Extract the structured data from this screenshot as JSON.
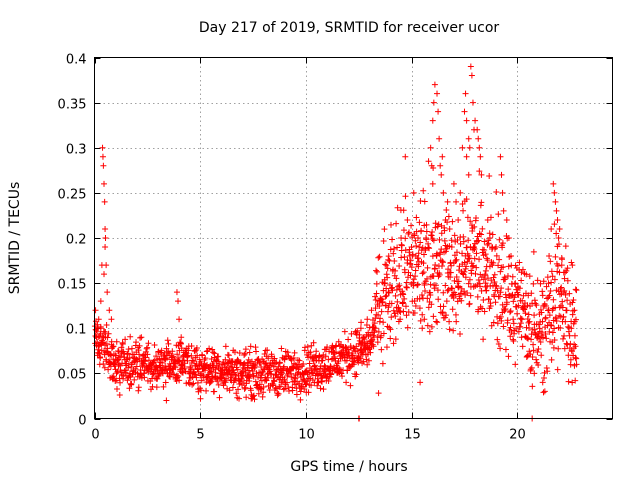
{
  "chart_data": {
    "type": "scatter",
    "title": "Day 217 of 2019, SRMTID for receiver ucor",
    "xlabel": "GPS time / hours",
    "ylabel": "SRMTID / TECUs",
    "xlim": [
      0,
      24.5
    ],
    "ylim": [
      0,
      0.4
    ],
    "xticks": [
      0,
      5,
      10,
      15,
      20
    ],
    "xtick_labels": [
      "0",
      "5",
      "10",
      "15",
      "20"
    ],
    "yticks": [
      0,
      0.05,
      0.1,
      0.15,
      0.2,
      0.25,
      0.3,
      0.35,
      0.4
    ],
    "ytick_labels": [
      "0",
      "0.05",
      "0.1",
      "0.15",
      "0.2",
      "0.25",
      "0.3",
      "0.35",
      "0.4"
    ],
    "grid": true,
    "marker": "+",
    "color": "#ff0000",
    "series": [
      {
        "name": "SRMTID",
        "trend": [
          [
            0.0,
            0.09
          ],
          [
            0.5,
            0.08
          ],
          [
            1.0,
            0.06
          ],
          [
            2.0,
            0.06
          ],
          [
            3.0,
            0.06
          ],
          [
            4.0,
            0.06
          ],
          [
            5.0,
            0.055
          ],
          [
            6.0,
            0.055
          ],
          [
            7.0,
            0.05
          ],
          [
            8.0,
            0.05
          ],
          [
            9.0,
            0.05
          ],
          [
            10.0,
            0.055
          ],
          [
            11.0,
            0.06
          ],
          [
            12.0,
            0.07
          ],
          [
            13.0,
            0.08
          ],
          [
            13.5,
            0.12
          ],
          [
            14.0,
            0.14
          ],
          [
            15.0,
            0.16
          ],
          [
            16.0,
            0.17
          ],
          [
            17.0,
            0.16
          ],
          [
            18.0,
            0.17
          ],
          [
            19.0,
            0.15
          ],
          [
            20.0,
            0.12
          ],
          [
            21.0,
            0.1
          ],
          [
            22.0,
            0.13
          ],
          [
            22.8,
            0.1
          ]
        ],
        "points": [
          [
            0.05,
            0.12
          ],
          [
            0.1,
            0.09
          ],
          [
            0.15,
            0.07
          ],
          [
            0.2,
            0.11
          ],
          [
            0.25,
            0.06
          ],
          [
            0.3,
            0.13
          ],
          [
            0.35,
            0.17
          ],
          [
            0.38,
            0.3
          ],
          [
            0.4,
            0.29
          ],
          [
            0.42,
            0.28
          ],
          [
            0.45,
            0.26
          ],
          [
            0.48,
            0.24
          ],
          [
            0.5,
            0.21
          ],
          [
            0.52,
            0.2
          ],
          [
            0.55,
            0.17
          ],
          [
            0.6,
            0.14
          ],
          [
            0.7,
            0.12
          ],
          [
            0.8,
            0.11
          ],
          [
            0.9,
            0.08
          ],
          [
            1.0,
            0.07
          ],
          [
            0.5,
            0.19
          ],
          [
            0.45,
            0.16
          ],
          [
            0.3,
            0.1
          ],
          [
            0.2,
            0.08
          ],
          [
            3.9,
            0.14
          ],
          [
            3.95,
            0.13
          ],
          [
            4.0,
            0.11
          ],
          [
            4.1,
            0.09
          ],
          [
            3.4,
            0.02
          ],
          [
            12.5,
            0.0
          ],
          [
            12.52,
            0.0
          ],
          [
            20.7,
            0.0
          ],
          [
            14.7,
            0.29
          ],
          [
            15.3,
            0.2
          ],
          [
            15.6,
            0.11
          ],
          [
            15.5,
            0.1
          ],
          [
            15.6,
            0.15
          ],
          [
            16.0,
            0.33
          ],
          [
            16.05,
            0.35
          ],
          [
            16.1,
            0.37
          ],
          [
            16.2,
            0.36
          ],
          [
            16.25,
            0.34
          ],
          [
            16.3,
            0.31
          ],
          [
            16.35,
            0.28
          ],
          [
            16.4,
            0.27
          ],
          [
            16.45,
            0.29
          ],
          [
            16.5,
            0.25
          ],
          [
            15.9,
            0.3
          ],
          [
            15.95,
            0.28
          ],
          [
            16.0,
            0.26
          ],
          [
            16.6,
            0.22
          ],
          [
            16.7,
            0.24
          ],
          [
            17.0,
            0.26
          ],
          [
            17.1,
            0.24
          ],
          [
            17.2,
            0.22
          ],
          [
            17.5,
            0.34
          ],
          [
            17.55,
            0.36
          ],
          [
            17.6,
            0.33
          ],
          [
            17.7,
            0.31
          ],
          [
            17.75,
            0.3
          ],
          [
            17.8,
            0.39
          ],
          [
            17.85,
            0.38
          ],
          [
            17.9,
            0.35
          ],
          [
            17.95,
            0.32
          ],
          [
            18.0,
            0.33
          ],
          [
            18.1,
            0.32
          ],
          [
            18.15,
            0.31
          ],
          [
            18.2,
            0.3
          ],
          [
            18.25,
            0.29
          ],
          [
            18.3,
            0.27
          ],
          [
            17.6,
            0.29
          ],
          [
            17.7,
            0.27
          ],
          [
            17.4,
            0.3
          ],
          [
            17.3,
            0.25
          ],
          [
            18.6,
            0.22
          ],
          [
            18.7,
            0.2
          ],
          [
            18.8,
            0.19
          ],
          [
            19.2,
            0.29
          ],
          [
            19.25,
            0.27
          ],
          [
            19.3,
            0.25
          ],
          [
            19.35,
            0.23
          ],
          [
            19.5,
            0.22
          ],
          [
            19.6,
            0.2
          ],
          [
            19.7,
            0.18
          ],
          [
            21.7,
            0.26
          ],
          [
            21.75,
            0.25
          ],
          [
            21.8,
            0.24
          ],
          [
            21.85,
            0.23
          ],
          [
            21.9,
            0.22
          ],
          [
            21.95,
            0.2
          ],
          [
            21.6,
            0.21
          ],
          [
            22.0,
            0.21
          ],
          [
            21.5,
            0.18
          ],
          [
            21.2,
            0.04
          ],
          [
            21.3,
            0.03
          ],
          [
            22.1,
            0.17
          ],
          [
            22.2,
            0.14
          ],
          [
            22.6,
            0.17
          ],
          [
            22.55,
            0.1
          ],
          [
            22.7,
            0.12
          ],
          [
            22.75,
            0.08
          ],
          [
            22.8,
            0.06
          ],
          [
            15.1,
            0.25
          ],
          [
            14.8,
            0.22
          ],
          [
            14.5,
            0.2
          ],
          [
            13.8,
            0.17
          ],
          [
            13.9,
            0.14
          ],
          [
            15.2,
            0.18
          ],
          [
            15.4,
            0.04
          ],
          [
            16.8,
            0.21
          ],
          [
            16.9,
            0.19
          ],
          [
            18.5,
            0.15
          ],
          [
            19.8,
            0.11
          ],
          [
            20.2,
            0.09
          ],
          [
            20.5,
            0.07
          ],
          [
            19.9,
            0.06
          ],
          [
            20.8,
            0.05
          ],
          [
            12.9,
            0.11
          ],
          [
            12.6,
            0.1
          ],
          [
            13.1,
            0.12
          ],
          [
            13.3,
            0.1
          ],
          [
            13.2,
            0.08
          ]
        ]
      }
    ]
  }
}
